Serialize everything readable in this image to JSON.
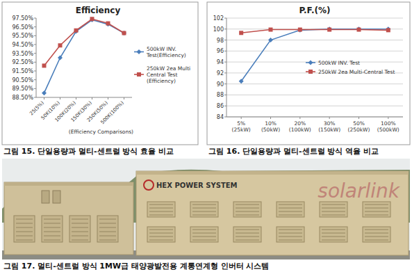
{
  "chart_data": [
    {
      "type": "line",
      "title": "Efficiency",
      "categories": [
        "25(5%)",
        "50K(10%)",
        "100K(20%)",
        "150K(30%)",
        "250K(50%)",
        "500K(100%)"
      ],
      "series": [
        {
          "name": "500kW INV. Test(Efficiency)",
          "color": "#4a7ebb",
          "marker": "diamond",
          "values": [
            89.0,
            93.0,
            96.0,
            97.3,
            96.8,
            95.8
          ]
        },
        {
          "name": "250kW 2ea Multi Central Test (Efficiency)",
          "color": "#c0504d",
          "marker": "square",
          "values": [
            92.1,
            94.4,
            96.1,
            97.4,
            96.9,
            95.8
          ]
        }
      ],
      "ylim": [
        88.5,
        97.5
      ],
      "yticks": [
        {
          "value": 88.5,
          "label": "88.50%"
        },
        {
          "value": 89.5,
          "label": "89.50%"
        },
        {
          "value": 90.5,
          "label": "90.50%"
        },
        {
          "value": 91.5,
          "label": "91.50%"
        },
        {
          "value": 92.5,
          "label": "92.50%"
        },
        {
          "value": 93.5,
          "label": "93.50%"
        },
        {
          "value": 94.5,
          "label": "94.50%"
        },
        {
          "value": 95.5,
          "label": "95.50%"
        },
        {
          "value": 96.5,
          "label": "96.50%"
        },
        {
          "value": 97.5,
          "label": "97.50%"
        }
      ],
      "grid": false,
      "legend": "right",
      "annotations": [
        "(Efficiency Comparisons)"
      ]
    },
    {
      "type": "line",
      "title": "P.F.(%)",
      "categories": [
        "5%(25kW)",
        "10%(50kW)",
        "20%(100kW)",
        "30%(150kW)",
        "50%(250kW)",
        "100%(500kW)"
      ],
      "series": [
        {
          "name": "500kW INV. Test",
          "color": "#4a7ebb",
          "marker": "diamond",
          "values": [
            90.5,
            98.0,
            99.8,
            100.0,
            100.0,
            100.0
          ]
        },
        {
          "name": "250kW 2ea Multi-Central Test",
          "color": "#c0504d",
          "marker": "square",
          "values": [
            99.3,
            99.9,
            99.9,
            99.9,
            99.9,
            99.8
          ]
        }
      ],
      "ylim": [
        84,
        102
      ],
      "yticks": [
        84,
        86,
        88,
        90,
        92,
        94,
        96,
        98,
        100,
        102
      ],
      "grid": true,
      "legend": "right"
    }
  ],
  "captions": [
    "그림 15. 단일용량과 멀티-센트럴 방식 효율 비교",
    "그림 16. 단일용량과 멀티-센트럴 방식 역율 비교",
    "그림 17. 멀티-센트럴 방식 1MW급 태양광발전용 계통연계형 인버터 시스템"
  ],
  "photo": {
    "labels": [
      "HEX POWER SYSTEM",
      "solarlink"
    ]
  }
}
